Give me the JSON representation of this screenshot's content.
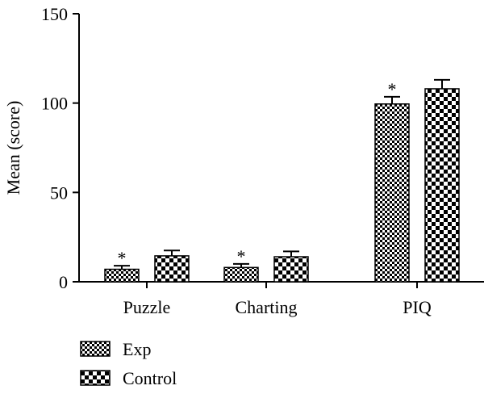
{
  "chart_data": {
    "type": "bar",
    "title": "",
    "xlabel": "",
    "ylabel": "Mean (score)",
    "ylim": [
      0,
      150
    ],
    "yticks": [
      0,
      50,
      100,
      150
    ],
    "categories": [
      "Puzzle",
      "Charting",
      "PIQ"
    ],
    "series": [
      {
        "name": "Exp",
        "pattern": "fine-check",
        "values": [
          7,
          8,
          99.5
        ],
        "errors": [
          2,
          2,
          4
        ],
        "annotations": [
          "*",
          "*",
          "*"
        ]
      },
      {
        "name": "Control",
        "pattern": "coarse-check",
        "values": [
          14.5,
          14,
          108
        ],
        "errors": [
          3,
          3,
          5
        ],
        "annotations": [
          "",
          "",
          ""
        ]
      }
    ],
    "legend_position": "bottom-left",
    "grid": false
  }
}
